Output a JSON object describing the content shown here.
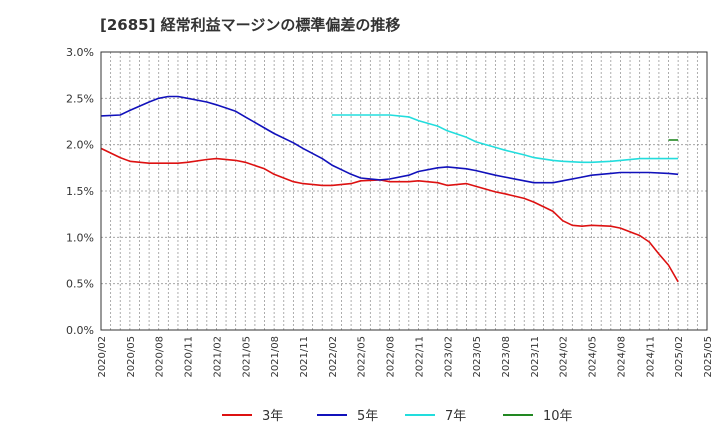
{
  "chart_data": {
    "type": "line",
    "title": "[2685]  経常利益マージンの標準偏差の推移",
    "y_tick_labels": [
      "0.0%",
      "0.5%",
      "1.0%",
      "1.5%",
      "2.0%",
      "2.5%",
      "3.0%"
    ],
    "x_tick_labels": [
      "2020/02",
      "2020/05",
      "2020/08",
      "2020/11",
      "2021/02",
      "2021/05",
      "2021/08",
      "2021/11",
      "2022/02",
      "2022/05",
      "2022/08",
      "2022/11",
      "2023/02",
      "2023/05",
      "2023/08",
      "2023/11",
      "2024/02",
      "2024/05",
      "2024/08",
      "2024/11",
      "2025/02",
      "2025/05"
    ],
    "ylim": [
      0,
      3.0
    ],
    "grid": true,
    "legend_position": "bottom",
    "series": [
      {
        "name": "3年",
        "color": "#dd1111",
        "points": [
          [
            "2020/02",
            1.96
          ],
          [
            "2020/04",
            1.86
          ],
          [
            "2020/05",
            1.82
          ],
          [
            "2020/07",
            1.8
          ],
          [
            "2020/08",
            1.8
          ],
          [
            "2020/10",
            1.8
          ],
          [
            "2020/11",
            1.81
          ],
          [
            "2021/01",
            1.84
          ],
          [
            "2021/02",
            1.85
          ],
          [
            "2021/04",
            1.83
          ],
          [
            "2021/05",
            1.81
          ],
          [
            "2021/07",
            1.74
          ],
          [
            "2021/08",
            1.68
          ],
          [
            "2021/10",
            1.6
          ],
          [
            "2021/11",
            1.58
          ],
          [
            "2022/01",
            1.56
          ],
          [
            "2022/02",
            1.56
          ],
          [
            "2022/04",
            1.58
          ],
          [
            "2022/05",
            1.61
          ],
          [
            "2022/07",
            1.62
          ],
          [
            "2022/08",
            1.6
          ],
          [
            "2022/10",
            1.6
          ],
          [
            "2022/11",
            1.61
          ],
          [
            "2023/01",
            1.59
          ],
          [
            "2023/02",
            1.56
          ],
          [
            "2023/04",
            1.58
          ],
          [
            "2023/05",
            1.55
          ],
          [
            "2023/07",
            1.49
          ],
          [
            "2023/08",
            1.47
          ],
          [
            "2023/10",
            1.42
          ],
          [
            "2023/11",
            1.38
          ],
          [
            "2024/01",
            1.28
          ],
          [
            "2024/02",
            1.18
          ],
          [
            "2024/03",
            1.13
          ],
          [
            "2024/04",
            1.12
          ],
          [
            "2024/05",
            1.13
          ],
          [
            "2024/07",
            1.12
          ],
          [
            "2024/08",
            1.1
          ],
          [
            "2024/10",
            1.02
          ],
          [
            "2024/11",
            0.95
          ],
          [
            "2024/12",
            0.82
          ],
          [
            "2025/01",
            0.7
          ],
          [
            "2025/02",
            0.52
          ]
        ]
      },
      {
        "name": "5年",
        "color": "#1111bb",
        "points": [
          [
            "2020/02",
            2.31
          ],
          [
            "2020/04",
            2.32
          ],
          [
            "2020/05",
            2.37
          ],
          [
            "2020/07",
            2.46
          ],
          [
            "2020/08",
            2.5
          ],
          [
            "2020/09",
            2.52
          ],
          [
            "2020/10",
            2.52
          ],
          [
            "2020/11",
            2.5
          ],
          [
            "2021/01",
            2.46
          ],
          [
            "2021/02",
            2.43
          ],
          [
            "2021/04",
            2.36
          ],
          [
            "2021/05",
            2.3
          ],
          [
            "2021/07",
            2.18
          ],
          [
            "2021/08",
            2.12
          ],
          [
            "2021/10",
            2.02
          ],
          [
            "2021/11",
            1.96
          ],
          [
            "2022/01",
            1.85
          ],
          [
            "2022/02",
            1.78
          ],
          [
            "2022/04",
            1.68
          ],
          [
            "2022/05",
            1.64
          ],
          [
            "2022/07",
            1.62
          ],
          [
            "2022/08",
            1.63
          ],
          [
            "2022/10",
            1.67
          ],
          [
            "2022/11",
            1.71
          ],
          [
            "2023/01",
            1.75
          ],
          [
            "2023/02",
            1.76
          ],
          [
            "2023/04",
            1.74
          ],
          [
            "2023/05",
            1.72
          ],
          [
            "2023/07",
            1.67
          ],
          [
            "2023/08",
            1.65
          ],
          [
            "2023/10",
            1.61
          ],
          [
            "2023/11",
            1.59
          ],
          [
            "2024/01",
            1.59
          ],
          [
            "2024/02",
            1.61
          ],
          [
            "2024/04",
            1.65
          ],
          [
            "2024/05",
            1.67
          ],
          [
            "2024/07",
            1.69
          ],
          [
            "2024/08",
            1.7
          ],
          [
            "2024/10",
            1.7
          ],
          [
            "2024/11",
            1.7
          ],
          [
            "2025/01",
            1.69
          ],
          [
            "2025/02",
            1.68
          ]
        ]
      },
      {
        "name": "7年",
        "color": "#22dddd",
        "points": [
          [
            "2022/02",
            2.32
          ],
          [
            "2022/04",
            2.32
          ],
          [
            "2022/05",
            2.32
          ],
          [
            "2022/07",
            2.32
          ],
          [
            "2022/08",
            2.32
          ],
          [
            "2022/10",
            2.3
          ],
          [
            "2022/11",
            2.26
          ],
          [
            "2023/01",
            2.2
          ],
          [
            "2023/02",
            2.15
          ],
          [
            "2023/04",
            2.08
          ],
          [
            "2023/05",
            2.03
          ],
          [
            "2023/07",
            1.97
          ],
          [
            "2023/08",
            1.94
          ],
          [
            "2023/10",
            1.89
          ],
          [
            "2023/11",
            1.86
          ],
          [
            "2024/01",
            1.83
          ],
          [
            "2024/02",
            1.82
          ],
          [
            "2024/04",
            1.81
          ],
          [
            "2024/05",
            1.81
          ],
          [
            "2024/07",
            1.82
          ],
          [
            "2024/08",
            1.83
          ],
          [
            "2024/10",
            1.85
          ],
          [
            "2024/11",
            1.85
          ],
          [
            "2025/01",
            1.85
          ],
          [
            "2025/02",
            1.85
          ]
        ]
      },
      {
        "name": "10年",
        "color": "#228822",
        "points": [
          [
            "2025/01",
            2.05
          ],
          [
            "2025/02",
            2.05
          ]
        ]
      }
    ]
  }
}
